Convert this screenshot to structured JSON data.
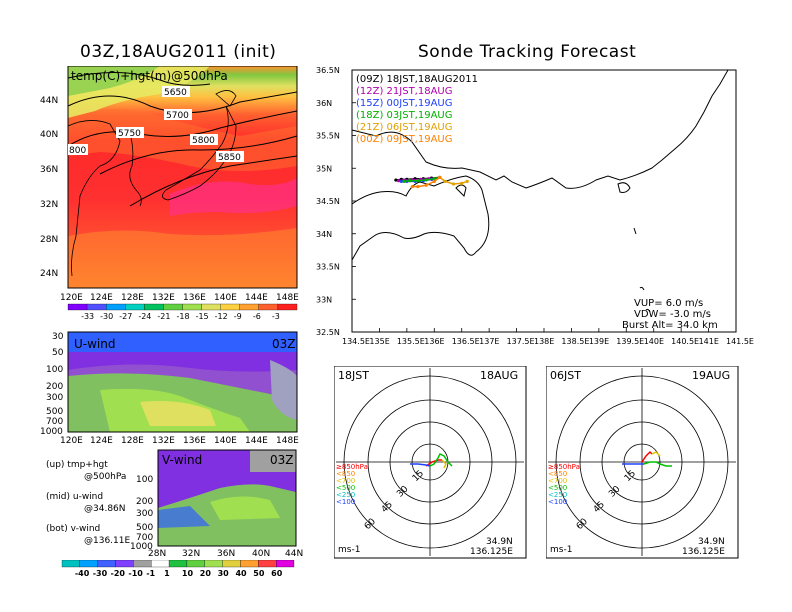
{
  "titles": {
    "left": "03Z,18AUG2011 (init)",
    "right": "Sonde Tracking Forecast"
  },
  "map500": {
    "label": "temp(C)+hgt(m)@500hPa",
    "lat_ticks": [
      "44N",
      "40N",
      "36N",
      "32N",
      "28N",
      "24N"
    ],
    "lon_ticks": [
      "120E",
      "124E",
      "128E",
      "132E",
      "136E",
      "140E",
      "144E",
      "148E"
    ],
    "contours": [
      "5650",
      "5700",
      "5750",
      "5800",
      "5850",
      "800"
    ],
    "colorbar_labels": [
      "-33",
      "-30",
      "-27",
      "-24",
      "-21",
      "-18",
      "-15",
      "-12",
      "-9",
      "-6",
      "-3"
    ],
    "colorbar_colors": [
      "#8000ff",
      "#5050ff",
      "#00a0ff",
      "#00d0c0",
      "#00c060",
      "#60d040",
      "#a0e050",
      "#e0e060",
      "#ffd040",
      "#ffa030",
      "#ff6030",
      "#ff2020"
    ]
  },
  "uwind": {
    "label": "U-wind",
    "time": "03Z",
    "p_ticks": [
      "30",
      "50",
      "100",
      "200",
      "300",
      "500",
      "700",
      "1000"
    ],
    "lon_ticks": [
      "120E",
      "124E",
      "128E",
      "132E",
      "136E",
      "140E",
      "144E",
      "148E"
    ]
  },
  "vwind": {
    "label": "V-wind",
    "time": "03Z",
    "p_ticks": [
      "100",
      "200",
      "300",
      "500",
      "700",
      "1000"
    ],
    "lat_ticks": [
      "28N",
      "32N",
      "36N",
      "40N",
      "44N"
    ],
    "colorbar_labels": [
      "-40",
      "-30",
      "-20",
      "-10",
      "-1",
      "1",
      "10",
      "20",
      "30",
      "40",
      "50",
      "60"
    ],
    "colorbar_colors": [
      "#00c0c0",
      "#00a0ff",
      "#4060ff",
      "#8040ff",
      "#a0a0a0",
      "#ffffff",
      "#20c040",
      "#60d040",
      "#a0e050",
      "#e0d040",
      "#ffa030",
      "#ff4040",
      "#e000e0"
    ]
  },
  "legend_notes": [
    {
      "top": "(up) tmp+hgt",
      "bottom": "@500hPa"
    },
    {
      "top": "(mid) u-wind",
      "bottom": "@34.86N"
    },
    {
      "top": "(bot) v-wind",
      "bottom": "@136.11E"
    }
  ],
  "track_map": {
    "lat_ticks": [
      "36.5N",
      "36N",
      "35.5N",
      "35N",
      "34.5N",
      "34N",
      "33.5N",
      "33N",
      "32.5N"
    ],
    "lon_ticks": [
      "134.5E",
      "135E",
      "135.5E",
      "136E",
      "136.5E",
      "137E",
      "137.5E",
      "138E",
      "138.5E",
      "139E",
      "139.5E",
      "140E",
      "140.5E",
      "141E",
      "141.5E"
    ],
    "legend": [
      {
        "text": "(09Z)  18JST,18AUG2011",
        "color": "#000000"
      },
      {
        "text": "(12Z)  21JST,18AUG",
        "color": "#b000b0"
      },
      {
        "text": "(15Z)  00JST,19AUG",
        "color": "#2040ff"
      },
      {
        "text": "(18Z)  03JST,19AUG",
        "color": "#00b000"
      },
      {
        "text": "(21Z)  06JST,19AUG",
        "color": "#e0a000"
      },
      {
        "text": "(00Z)  09JST,19AUG",
        "color": "#ff8000"
      }
    ],
    "vup": "VUP=  6.0  m/s",
    "vdw": "VDW=  -3.0  m/s",
    "burst": "Burst Alt=  34.0  km"
  },
  "polar_left": {
    "time": "18JST",
    "date": "18AUG",
    "ring_labels": [
      "15",
      "30",
      "45",
      "60"
    ],
    "units": "ms-1",
    "lat": "34.9N",
    "lon": "136.125E",
    "levels": [
      {
        "text": "≥850hPa",
        "color": "#ff0000"
      },
      {
        "text": "<850",
        "color": "#ff8000"
      },
      {
        "text": "<700",
        "color": "#e0c000"
      },
      {
        "text": "<500",
        "color": "#00c000"
      },
      {
        "text": "<250",
        "color": "#00c0c0"
      },
      {
        "text": "<100",
        "color": "#2040ff"
      }
    ]
  },
  "polar_right": {
    "time": "06JST",
    "date": "19AUG",
    "ring_labels": [
      "15",
      "30",
      "45",
      "60"
    ],
    "units": "ms-1",
    "lat": "34.9N",
    "lon": "136.125E",
    "levels": [
      {
        "text": "≥850hPa",
        "color": "#ff0000"
      },
      {
        "text": "<850",
        "color": "#ff8000"
      },
      {
        "text": "<700",
        "color": "#e0c000"
      },
      {
        "text": "<500",
        "color": "#00c000"
      },
      {
        "text": "<250",
        "color": "#00c0c0"
      },
      {
        "text": "<100",
        "color": "#2040ff"
      }
    ]
  },
  "chart_data": [
    {
      "type": "heatmap",
      "title": "03Z,18AUG2011 (init)",
      "label": "temp(C)+hgt(m)@500hPa",
      "x_ticks": [
        "120E",
        "124E",
        "128E",
        "132E",
        "136E",
        "140E",
        "144E",
        "148E"
      ],
      "y_ticks": [
        "24N",
        "28N",
        "32N",
        "36N",
        "40N",
        "44N"
      ],
      "contour_labels": [
        5650,
        5700,
        5750,
        5800,
        5850
      ],
      "colorbar": [
        -33,
        -30,
        -27,
        -24,
        -21,
        -18,
        -15,
        -12,
        -9,
        -6,
        -3
      ]
    },
    {
      "type": "heatmap",
      "label": "U-wind",
      "time": "03Z",
      "y_ticks": [
        30,
        50,
        100,
        200,
        300,
        500,
        700,
        1000
      ]
    },
    {
      "type": "heatmap",
      "label": "V-wind",
      "time": "03Z",
      "y_ticks": [
        100,
        200,
        300,
        500,
        700,
        1000
      ],
      "colorbar": [
        -40,
        -30,
        -20,
        -10,
        -1,
        1,
        10,
        20,
        30,
        40,
        50,
        60
      ]
    },
    {
      "type": "line",
      "title": "Sonde Tracking Forecast",
      "xlim": [
        134.5,
        141.5
      ],
      "ylim": [
        32.5,
        36.5
      ],
      "series": [
        {
          "name": "(09Z)  18JST,18AUG2011",
          "x": [
            136.1,
            135.95,
            135.8,
            135.65,
            135.5,
            135.4,
            135.3
          ],
          "y": [
            34.86,
            34.85,
            34.84,
            34.84,
            34.83,
            34.83,
            34.82
          ]
        },
        {
          "name": "(12Z)  21JST,18AUG",
          "x": [
            136.1,
            135.9,
            135.75,
            135.6,
            135.45,
            135.35
          ],
          "y": [
            34.86,
            34.84,
            34.83,
            34.82,
            34.82,
            34.81
          ]
        },
        {
          "name": "(15Z)  00JST,19AUG",
          "x": [
            136.1,
            135.95,
            135.8,
            135.65,
            135.5,
            135.4
          ],
          "y": [
            34.86,
            34.83,
            34.81,
            34.8,
            34.8,
            34.8
          ]
        },
        {
          "name": "(18Z)  03JST,19AUG",
          "x": [
            136.1,
            136.0,
            135.85,
            135.7,
            135.55,
            135.45
          ],
          "y": [
            34.86,
            34.84,
            34.82,
            34.81,
            34.81,
            34.8
          ]
        },
        {
          "name": "(21Z)  06JST,19AUG",
          "x": [
            136.1,
            136.2,
            136.35,
            136.5,
            136.6
          ],
          "y": [
            34.86,
            34.8,
            34.76,
            34.77,
            34.8
          ]
        },
        {
          "name": "(00Z)  09JST,19AUG",
          "x": [
            136.1,
            136.0,
            135.85,
            135.7,
            135.6
          ],
          "y": [
            34.86,
            34.8,
            34.74,
            34.72,
            34.72
          ]
        }
      ]
    }
  ]
}
